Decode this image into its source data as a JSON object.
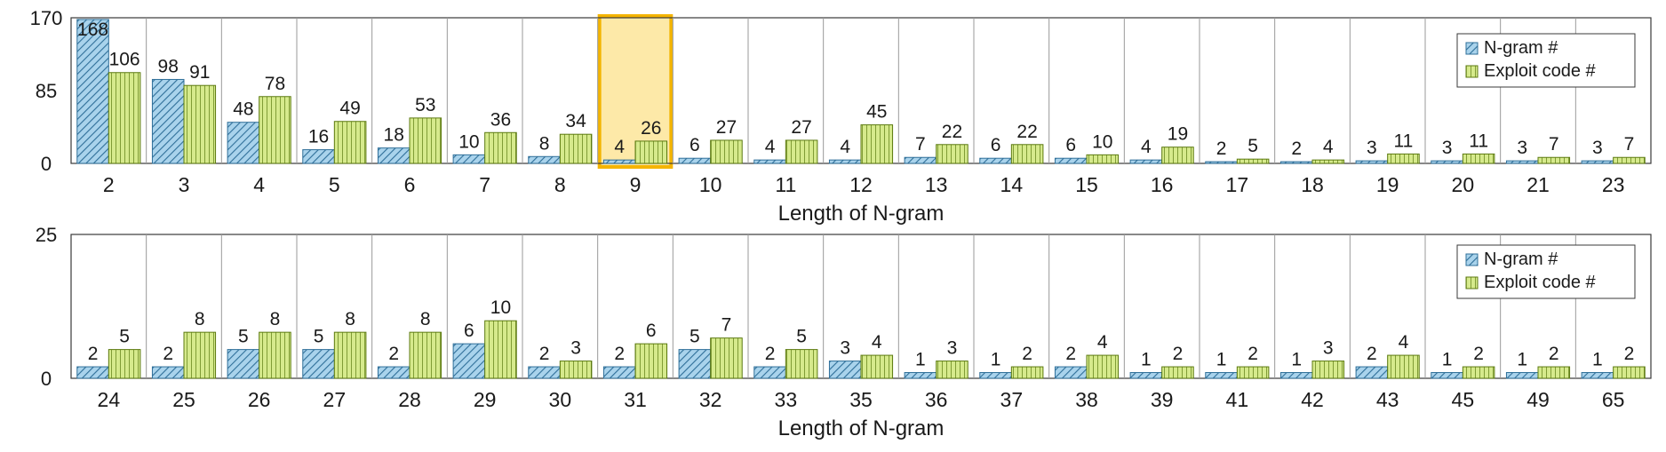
{
  "colors": {
    "ngram_fill": "#a9d3ec",
    "ngram_stroke": "#2f6f99",
    "exploit_fill": "#d6ea8c",
    "exploit_stroke": "#5c7a10",
    "highlight_fill": "#fde9a8",
    "highlight_stroke": "#f4b400",
    "axis": "#3a3a3a",
    "grid": "#9a9a9a"
  },
  "chart_data": [
    {
      "type": "bar",
      "xlabel": "Length of N-gram",
      "ylabel": "",
      "ylim": [
        0,
        170
      ],
      "yticks": [
        "0",
        "85",
        "170"
      ],
      "legend": "top-right",
      "grid": "vertical separators between categories",
      "highlight_category": "9",
      "categories": [
        "2",
        "3",
        "4",
        "5",
        "6",
        "7",
        "8",
        "9",
        "10",
        "11",
        "12",
        "13",
        "14",
        "15",
        "16",
        "17",
        "18",
        "19",
        "20",
        "21",
        "23"
      ],
      "series": [
        {
          "name": "N-gram #",
          "values": [
            168,
            98,
            48,
            16,
            18,
            10,
            8,
            4,
            6,
            4,
            4,
            7,
            6,
            6,
            4,
            2,
            2,
            3,
            3,
            3,
            3
          ]
        },
        {
          "name": "Exploit code #",
          "values": [
            106,
            91,
            78,
            49,
            53,
            36,
            34,
            26,
            27,
            27,
            45,
            22,
            22,
            10,
            19,
            5,
            4,
            11,
            11,
            7,
            7
          ]
        }
      ]
    },
    {
      "type": "bar",
      "xlabel": "Length of N-gram",
      "ylabel": "",
      "ylim": [
        0,
        25
      ],
      "yticks": [
        "0",
        "25"
      ],
      "legend": "top-right",
      "grid": "vertical separators between categories",
      "categories": [
        "24",
        "25",
        "26",
        "27",
        "28",
        "29",
        "30",
        "31",
        "32",
        "33",
        "35",
        "36",
        "37",
        "38",
        "39",
        "41",
        "42",
        "43",
        "45",
        "49",
        "65"
      ],
      "series": [
        {
          "name": "N-gram #",
          "values": [
            2,
            2,
            5,
            5,
            2,
            6,
            2,
            2,
            5,
            2,
            3,
            1,
            1,
            2,
            1,
            1,
            1,
            2,
            1,
            1,
            1
          ]
        },
        {
          "name": "Exploit code #",
          "values": [
            5,
            8,
            8,
            8,
            8,
            10,
            3,
            6,
            7,
            5,
            4,
            3,
            2,
            4,
            2,
            2,
            3,
            4,
            2,
            2,
            2
          ]
        }
      ]
    }
  ]
}
